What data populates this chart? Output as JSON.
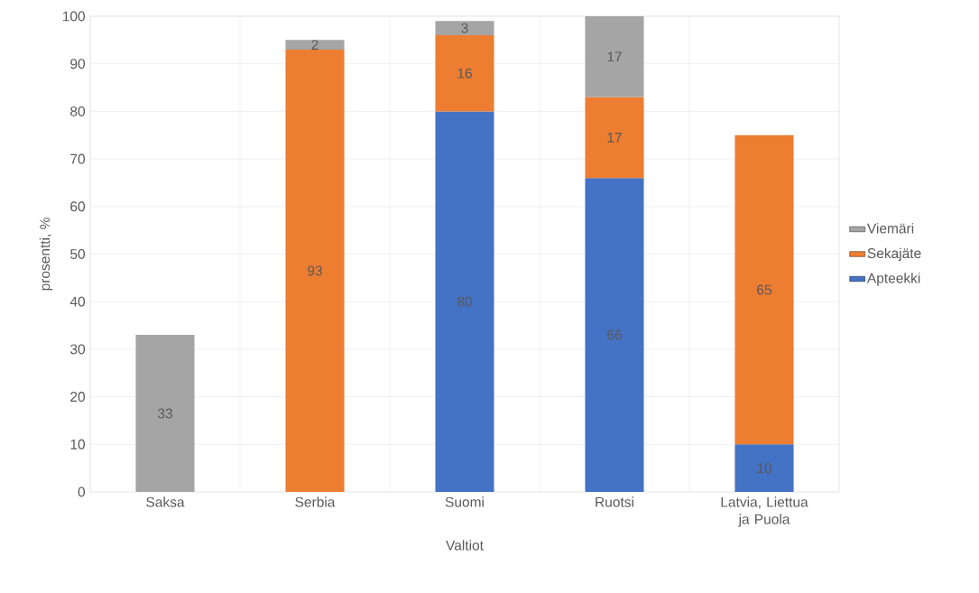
{
  "chart_data": {
    "type": "bar",
    "stacked": true,
    "xlabel": "Valtiot",
    "ylabel": "prosentti, %",
    "categories": [
      "Saksa",
      "Serbia",
      "Suomi",
      "Ruotsi",
      "Latvia, Liettua ja Puola"
    ],
    "series": [
      {
        "name": "Apteekki",
        "color": "#4472c4",
        "values": [
          null,
          null,
          80,
          66,
          10
        ]
      },
      {
        "name": "Sekajäte",
        "color": "#ed7d31",
        "values": [
          null,
          93,
          16,
          17,
          65
        ]
      },
      {
        "name": "Viemäri",
        "color": "#a5a5a5",
        "values": [
          33,
          2,
          3,
          17,
          null
        ]
      }
    ],
    "ylim": [
      0,
      100
    ],
    "yticks": [
      0,
      10,
      20,
      30,
      40,
      50,
      60,
      70,
      80,
      90,
      100
    ],
    "grid": true,
    "legend": "right",
    "data_labels": true
  }
}
